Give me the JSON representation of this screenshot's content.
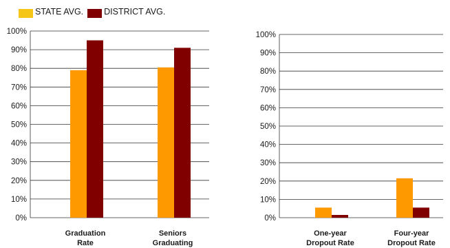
{
  "legend": {
    "state_label": "STATE AVG.",
    "district_label": "DISTRICT AVG."
  },
  "colors": {
    "state": "#FF9900",
    "district": "#800000",
    "legend_state": "#F5C518",
    "gridline": "#333333",
    "text": "#1a1a1a"
  },
  "chart_data": [
    {
      "type": "bar",
      "categories": [
        [
          "Graduation",
          "Rate"
        ],
        [
          "Seniors",
          "Graduating"
        ]
      ],
      "series": [
        {
          "name": "STATE AVG.",
          "values": [
            79,
            80.5
          ]
        },
        {
          "name": "DISTRICT AVG.",
          "values": [
            95,
            91
          ]
        }
      ],
      "ylim": [
        0,
        100
      ],
      "yticks": [
        "0%",
        "10%",
        "20%",
        "30%",
        "40%",
        "50%",
        "60%",
        "70%",
        "80%",
        "90%",
        "100%"
      ],
      "grid": true,
      "legend": "top-left"
    },
    {
      "type": "bar",
      "categories": [
        [
          "One-year",
          "Dropout Rate"
        ],
        [
          "Four-year",
          "Dropout Rate"
        ]
      ],
      "series": [
        {
          "name": "STATE AVG.",
          "values": [
            5.5,
            21.5
          ]
        },
        {
          "name": "DISTRICT AVG.",
          "values": [
            1.5,
            5.5
          ]
        }
      ],
      "ylim": [
        0,
        100
      ],
      "yticks": [
        "0%",
        "10%",
        "20%",
        "30%",
        "40%",
        "50%",
        "60%",
        "70%",
        "80%",
        "90%",
        "100%"
      ],
      "grid": true
    }
  ]
}
